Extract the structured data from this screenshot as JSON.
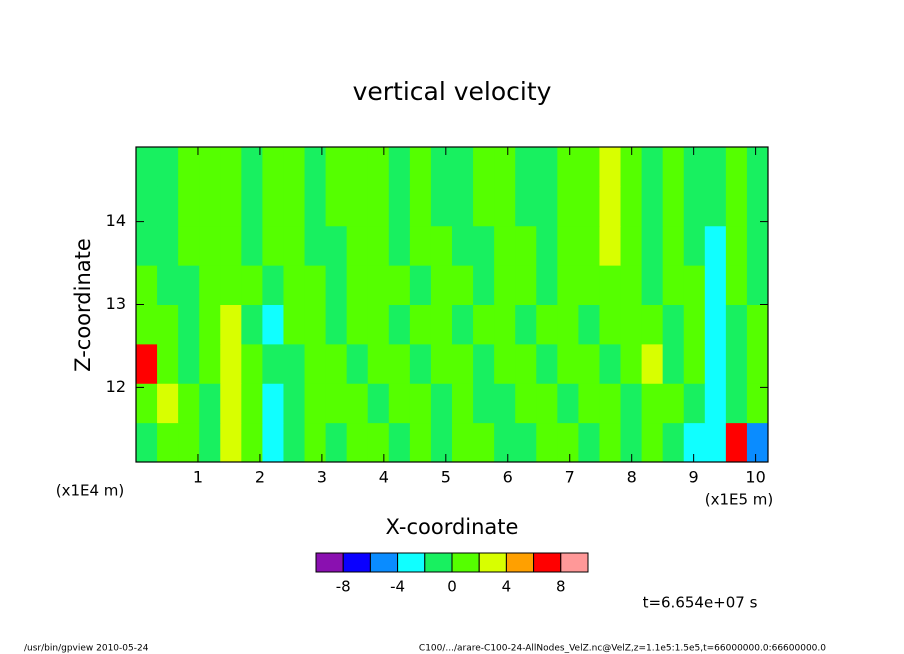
{
  "chart_data": {
    "type": "contour",
    "title": "vertical velocity",
    "x_label": "X-coordinate",
    "y_label": "Z-coordinate",
    "x_unit": "(x1E5 m)",
    "y_unit": "(x1E4 m)",
    "xlim": [
      0,
      10.2
    ],
    "ylim": [
      11.1,
      14.9
    ],
    "xticks": [
      1,
      2,
      3,
      4,
      5,
      6,
      7,
      8,
      9,
      10
    ],
    "yticks": [
      12,
      13,
      14
    ],
    "field": {
      "x": [
        0.17,
        0.51,
        0.85,
        1.19,
        1.53,
        1.87,
        2.21,
        2.55,
        2.89,
        3.23,
        3.57,
        3.91,
        4.25,
        4.59,
        4.93,
        5.27,
        5.61,
        5.95,
        6.29,
        6.63,
        6.97,
        7.31,
        7.65,
        7.99,
        8.33,
        8.67,
        9.01,
        9.35,
        9.69,
        10.03
      ],
      "z": [
        11.34,
        11.81,
        12.29,
        12.76,
        13.24,
        13.71,
        14.19,
        14.66
      ],
      "values": [
        [
          -1,
          1,
          1,
          -1,
          3,
          1,
          -3,
          -1,
          1,
          -1,
          1,
          1,
          -1,
          1,
          -1,
          1,
          1,
          -1,
          -1,
          1,
          1,
          -1,
          1,
          -1,
          1,
          -1,
          -3,
          -3,
          7,
          -5
        ],
        [
          1,
          3,
          1,
          -1,
          3,
          1,
          -3,
          -1,
          1,
          1,
          1,
          -1,
          1,
          1,
          -1,
          1,
          -1,
          -1,
          1,
          1,
          -1,
          1,
          1,
          -1,
          1,
          1,
          -1,
          -3,
          -1,
          1
        ],
        [
          7,
          1,
          -1,
          1,
          3,
          1,
          -1,
          -1,
          1,
          1,
          -1,
          1,
          1,
          -1,
          1,
          1,
          -1,
          1,
          1,
          -1,
          1,
          1,
          -1,
          1,
          3,
          -1,
          1,
          -3,
          -1,
          1
        ],
        [
          1,
          1,
          -1,
          1,
          3,
          -1,
          -3,
          1,
          1,
          -1,
          1,
          1,
          -1,
          1,
          1,
          -1,
          1,
          1,
          -1,
          1,
          1,
          -1,
          1,
          1,
          1,
          -1,
          1,
          -3,
          -1,
          1
        ],
        [
          1,
          -1,
          -1,
          1,
          1,
          1,
          -1,
          1,
          1,
          -1,
          1,
          1,
          1,
          -1,
          1,
          1,
          -1,
          1,
          1,
          -1,
          1,
          1,
          1,
          1,
          -1,
          1,
          1,
          -3,
          1,
          -1
        ],
        [
          -1,
          -1,
          1,
          1,
          1,
          -1,
          1,
          1,
          -1,
          -1,
          1,
          1,
          -1,
          1,
          1,
          -1,
          -1,
          1,
          1,
          -1,
          1,
          1,
          3,
          1,
          -1,
          1,
          -1,
          -3,
          1,
          -1
        ],
        [
          -1,
          -1,
          1,
          1,
          1,
          -1,
          1,
          1,
          -1,
          1,
          1,
          1,
          -1,
          1,
          -1,
          -1,
          1,
          1,
          -1,
          -1,
          1,
          1,
          3,
          1,
          -1,
          1,
          -1,
          -1,
          1,
          -1
        ],
        [
          -1,
          -1,
          1,
          1,
          1,
          -1,
          1,
          1,
          -1,
          1,
          1,
          1,
          -1,
          1,
          -1,
          -1,
          1,
          1,
          -1,
          -1,
          1,
          1,
          3,
          1,
          -1,
          1,
          -1,
          -1,
          1,
          -1
        ]
      ]
    },
    "colorbar": {
      "bins": [
        -10,
        -8,
        -6,
        -4,
        -2,
        0,
        2,
        4,
        6,
        8,
        10
      ],
      "colors": [
        "#8a10b0",
        "#0a00ff",
        "#0a8cff",
        "#10ffff",
        "#18f060",
        "#55ff00",
        "#d8ff00",
        "#ffa000",
        "#ff0000",
        "#ff9898"
      ],
      "ticks": [
        -8,
        -4,
        0,
        4,
        8
      ]
    },
    "annotation": "t=6.654e+07 s",
    "footer_left": "/usr/bin/gpview  2010-05-24",
    "footer_right": "C100/.../arare-C100-24-AllNodes_VelZ.nc@VelZ,z=1.1e5:1.5e5,t=66000000.0:66600000.0"
  }
}
